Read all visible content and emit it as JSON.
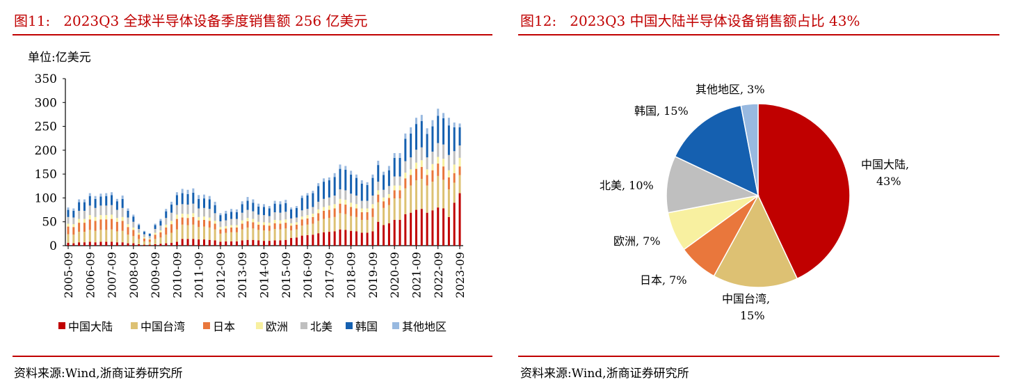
{
  "left": {
    "title": "图11:   2023Q3 全球半导体设备季度销售额 256 亿美元",
    "source": "资料来源:Wind,浙商证券研究所"
  },
  "right": {
    "title": "图12:   2023Q3 中国大陆半导体设备销售额占比 43%",
    "source": "资料来源:Wind,浙商证券研究所"
  },
  "chart_data": [
    {
      "type": "bar",
      "stacked": true,
      "unit_label": "单位:亿美元",
      "ylim": [
        0,
        350
      ],
      "yticks": [
        0,
        50,
        100,
        150,
        200,
        250,
        300,
        350
      ],
      "xtick_labels": [
        "2005-09",
        "2006-09",
        "2007-09",
        "2008-09",
        "2009-09",
        "2010-09",
        "2011-09",
        "2012-09",
        "2013-09",
        "2014-09",
        "2015-09",
        "2016-09",
        "2017-09",
        "2018-09",
        "2019-09",
        "2020-09",
        "2021-09",
        "2022-09",
        "2023-09"
      ],
      "legend_position": "bottom",
      "grid": false,
      "categories": [
        "2005-09",
        "2005-12",
        "2006-03",
        "2006-06",
        "2006-09",
        "2006-12",
        "2007-03",
        "2007-06",
        "2007-09",
        "2007-12",
        "2008-03",
        "2008-06",
        "2008-09",
        "2008-12",
        "2009-03",
        "2009-06",
        "2009-09",
        "2009-12",
        "2010-03",
        "2010-06",
        "2010-09",
        "2010-12",
        "2011-03",
        "2011-06",
        "2011-09",
        "2011-12",
        "2012-03",
        "2012-06",
        "2012-09",
        "2012-12",
        "2013-03",
        "2013-06",
        "2013-09",
        "2013-12",
        "2014-03",
        "2014-06",
        "2014-09",
        "2014-12",
        "2015-03",
        "2015-06",
        "2015-09",
        "2015-12",
        "2016-03",
        "2016-06",
        "2016-09",
        "2016-12",
        "2017-03",
        "2017-06",
        "2017-09",
        "2017-12",
        "2018-03",
        "2018-06",
        "2018-09",
        "2018-12",
        "2019-03",
        "2019-06",
        "2019-09",
        "2019-12",
        "2020-03",
        "2020-06",
        "2020-09",
        "2020-12",
        "2021-03",
        "2021-06",
        "2021-09",
        "2021-12",
        "2022-03",
        "2022-06",
        "2022-09",
        "2022-12",
        "2023-03",
        "2023-06",
        "2023-09"
      ],
      "series": [
        {
          "name": "中国大陆",
          "color": "#C00000",
          "values": [
            6,
            5,
            7,
            7,
            8,
            7,
            8,
            8,
            8,
            7,
            7,
            5,
            5,
            3,
            2,
            2,
            3,
            4,
            5,
            6,
            8,
            14,
            14,
            14,
            13,
            13,
            12,
            11,
            8,
            9,
            9,
            9,
            11,
            12,
            12,
            11,
            10,
            10,
            11,
            11,
            12,
            16,
            17,
            21,
            22,
            23,
            26,
            28,
            29,
            30,
            34,
            33,
            31,
            30,
            27,
            27,
            30,
            50,
            43,
            47,
            54,
            54,
            66,
            69,
            75,
            77,
            69,
            74,
            80,
            78,
            60,
            90,
            110
          ]
        },
        {
          "name": "中国台湾",
          "color": "#DDC173",
          "values": [
            18,
            18,
            22,
            22,
            25,
            24,
            25,
            25,
            26,
            23,
            24,
            18,
            15,
            11,
            7,
            6,
            11,
            13,
            18,
            21,
            26,
            30,
            29,
            30,
            26,
            27,
            26,
            23,
            17,
            18,
            19,
            19,
            23,
            26,
            24,
            22,
            22,
            21,
            24,
            23,
            24,
            16,
            17,
            21,
            22,
            23,
            26,
            28,
            29,
            30,
            34,
            33,
            31,
            30,
            27,
            27,
            30,
            41,
            36,
            38,
            45,
            45,
            54,
            57,
            62,
            63,
            57,
            60,
            66,
            60,
            58,
            42,
            38
          ]
        },
        {
          "name": "日本",
          "color": "#E9773C",
          "values": [
            16,
            16,
            19,
            19,
            22,
            21,
            22,
            22,
            22,
            20,
            21,
            16,
            13,
            9,
            6,
            5,
            9,
            11,
            15,
            18,
            22,
            15,
            15,
            16,
            14,
            14,
            14,
            12,
            9,
            9,
            10,
            10,
            12,
            13,
            13,
            11,
            11,
            11,
            12,
            12,
            12,
            10,
            10,
            13,
            13,
            14,
            16,
            17,
            17,
            18,
            20,
            20,
            19,
            18,
            16,
            16,
            18,
            16,
            14,
            15,
            17,
            17,
            21,
            22,
            24,
            25,
            22,
            24,
            26,
            28,
            25,
            20,
            18
          ]
        },
        {
          "name": "欧洲",
          "color": "#F8F0A0",
          "values": [
            6,
            6,
            8,
            8,
            9,
            8,
            9,
            9,
            9,
            8,
            8,
            6,
            5,
            4,
            3,
            2,
            4,
            4,
            6,
            7,
            9,
            8,
            8,
            8,
            7,
            7,
            7,
            6,
            5,
            5,
            5,
            5,
            7,
            7,
            7,
            6,
            6,
            6,
            7,
            7,
            7,
            5,
            5,
            6,
            7,
            7,
            8,
            8,
            9,
            9,
            10,
            10,
            9,
            9,
            8,
            8,
            9,
            9,
            8,
            8,
            10,
            10,
            12,
            12,
            13,
            14,
            12,
            13,
            14,
            16,
            15,
            18,
            18
          ]
        },
        {
          "name": "北美",
          "color": "#BFBFBF",
          "values": [
            14,
            14,
            17,
            17,
            20,
            19,
            20,
            20,
            20,
            17,
            19,
            14,
            12,
            8,
            6,
            5,
            8,
            10,
            14,
            17,
            20,
            20,
            20,
            20,
            18,
            18,
            18,
            16,
            12,
            12,
            13,
            13,
            16,
            17,
            16,
            15,
            15,
            14,
            16,
            16,
            16,
            10,
            10,
            13,
            13,
            14,
            16,
            17,
            17,
            18,
            20,
            20,
            19,
            18,
            16,
            16,
            18,
            18,
            16,
            17,
            19,
            19,
            24,
            25,
            27,
            27,
            25,
            26,
            29,
            30,
            32,
            28,
            26
          ]
        },
        {
          "name": "韩国",
          "color": "#1560B0",
          "values": [
            15,
            14,
            18,
            18,
            20,
            19,
            19,
            20,
            21,
            18,
            19,
            14,
            11,
            8,
            5,
            5,
            8,
            10,
            14,
            17,
            21,
            23,
            22,
            23,
            20,
            20,
            20,
            17,
            13,
            14,
            15,
            14,
            18,
            19,
            18,
            17,
            17,
            16,
            18,
            18,
            18,
            19,
            20,
            26,
            28,
            29,
            33,
            36,
            36,
            39,
            43,
            43,
            40,
            37,
            36,
            33,
            37,
            35,
            31,
            33,
            39,
            39,
            47,
            50,
            54,
            55,
            49,
            53,
            57,
            55,
            62,
            50,
            38
          ]
        },
        {
          "name": "其他地区",
          "color": "#98B9E0",
          "values": [
            5,
            5,
            6,
            6,
            6,
            6,
            6,
            6,
            6,
            5,
            7,
            5,
            4,
            3,
            2,
            1,
            3,
            4,
            5,
            6,
            6,
            9,
            9,
            9,
            8,
            8,
            7,
            7,
            4,
            6,
            6,
            6,
            6,
            8,
            7,
            6,
            6,
            5,
            6,
            6,
            7,
            4,
            4,
            5,
            5,
            5,
            6,
            7,
            6,
            8,
            9,
            8,
            8,
            7,
            7,
            6,
            7,
            9,
            7,
            9,
            10,
            10,
            11,
            13,
            13,
            13,
            12,
            13,
            15,
            11,
            16,
            10,
            8
          ]
        }
      ]
    },
    {
      "type": "pie",
      "slices": [
        {
          "label": "中国大陆",
          "value": 43,
          "text": "中国大陆,",
          "pct": "43%",
          "color": "#C00000"
        },
        {
          "label": "中国台湾",
          "value": 15,
          "text": "中国台湾,",
          "pct": "15%",
          "color": "#DDC173"
        },
        {
          "label": "日本",
          "value": 7,
          "text": "日本, 7%",
          "color": "#E9773C"
        },
        {
          "label": "欧洲",
          "value": 7,
          "text": "欧洲, 7%",
          "color": "#F8F0A0"
        },
        {
          "label": "北美",
          "value": 10,
          "text": "北美, 10%",
          "color": "#BFBFBF"
        },
        {
          "label": "韩国",
          "value": 15,
          "text": "韩国, 15%",
          "color": "#1560B0"
        },
        {
          "label": "其他地区",
          "value": 3,
          "text": "其他地区, 3%",
          "color": "#98B9E0"
        }
      ]
    }
  ]
}
